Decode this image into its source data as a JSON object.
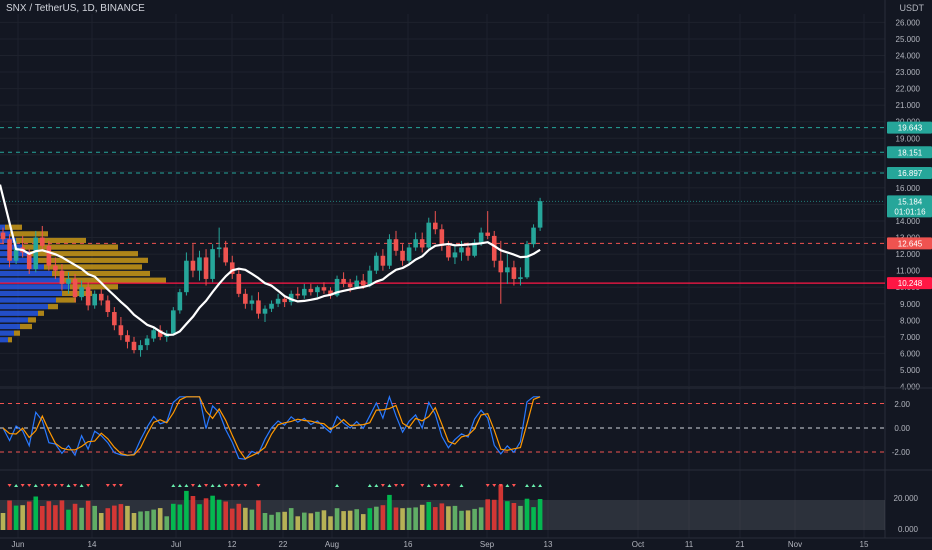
{
  "header": {
    "symbol_line": "SNX / TetherUS, 1D, BINANCE",
    "currency": "USDT"
  },
  "colors": {
    "bg": "#131722",
    "grid": "#1e222d",
    "up": "#26a69a",
    "down": "#ef5350",
    "ma": "#ffffff",
    "vp_blue": "#2962ff",
    "vp_gold": "#d4a017",
    "osc_blue": "#2979ff",
    "osc_orange": "#ff9800"
  },
  "x_axis": {
    "labels": [
      "Jun",
      "14",
      "Jul",
      "12",
      "22",
      "Aug",
      "16",
      "Sep",
      "13",
      "Oct",
      "11",
      "21",
      "Nov",
      "15"
    ]
  },
  "price_axis": {
    "ticks": [
      "26.000",
      "25.000",
      "24.000",
      "23.000",
      "22.000",
      "21.000",
      "20.000",
      "19.000",
      "18.000",
      "17.000",
      "16.000",
      "15.000",
      "14.000",
      "13.000",
      "12.000",
      "11.000",
      "10.000",
      "9.000",
      "8.000",
      "7.000",
      "6.000",
      "5.000",
      "4.000"
    ]
  },
  "osc_axis": {
    "ticks": [
      "2.00",
      "0.00",
      "-2.00"
    ]
  },
  "vol_axis": {
    "ticks": [
      "20.000",
      "0.000"
    ]
  },
  "price_labels": {
    "teal": [
      "19.643",
      "18.151",
      "16.897"
    ],
    "last": "15.184",
    "countdown": "01:01:16",
    "red_dash": "12.645",
    "red_solid": "10.248"
  },
  "chart_data": {
    "type": "candlestick",
    "x_start_date": "2021-06-01",
    "symbol": "SNX / TetherUS",
    "interval": "1D",
    "exchange": "BINANCE",
    "ylim": [
      4,
      26.5
    ],
    "levels": {
      "teal_dashed": [
        19.643,
        18.151,
        16.897
      ],
      "red_dashed": 12.645,
      "red_solid": 10.248,
      "last": 15.184
    },
    "candles": [
      [
        13.3,
        13.6,
        12.6,
        12.9
      ],
      [
        12.9,
        13.2,
        11.2,
        11.6
      ],
      [
        11.6,
        12.8,
        11.4,
        12.4
      ],
      [
        12.4,
        13.1,
        11.8,
        12.1
      ],
      [
        12.1,
        12.3,
        10.8,
        11.1
      ],
      [
        11.1,
        13.4,
        10.9,
        13.0
      ],
      [
        13.0,
        13.7,
        12.2,
        12.5
      ],
      [
        12.5,
        12.8,
        11.0,
        11.3
      ],
      [
        11.3,
        11.8,
        10.5,
        11.0
      ],
      [
        11.0,
        11.4,
        9.8,
        10.2
      ],
      [
        10.2,
        10.9,
        9.6,
        10.5
      ],
      [
        10.5,
        10.8,
        9.1,
        9.4
      ],
      [
        9.4,
        10.4,
        9.2,
        10.0
      ],
      [
        10.0,
        10.3,
        8.6,
        8.9
      ],
      [
        8.9,
        9.8,
        8.7,
        9.6
      ],
      [
        9.6,
        9.9,
        8.9,
        9.2
      ],
      [
        9.2,
        9.5,
        8.2,
        8.5
      ],
      [
        8.5,
        8.8,
        7.4,
        7.7
      ],
      [
        7.7,
        8.2,
        6.8,
        7.1
      ],
      [
        7.1,
        7.4,
        6.3,
        6.7
      ],
      [
        6.7,
        7.0,
        6.0,
        6.2
      ],
      [
        6.2,
        6.8,
        5.8,
        6.5
      ],
      [
        6.5,
        7.1,
        6.2,
        6.9
      ],
      [
        6.9,
        7.6,
        6.7,
        7.4
      ],
      [
        7.4,
        7.7,
        6.8,
        7.0
      ],
      [
        7.0,
        7.4,
        6.7,
        7.2
      ],
      [
        7.2,
        8.8,
        7.1,
        8.6
      ],
      [
        8.6,
        9.9,
        8.4,
        9.7
      ],
      [
        9.7,
        12.1,
        9.5,
        11.6
      ],
      [
        11.6,
        12.6,
        10.6,
        11.0
      ],
      [
        11.0,
        12.2,
        10.4,
        11.8
      ],
      [
        11.8,
        12.3,
        10.1,
        10.5
      ],
      [
        10.5,
        12.6,
        10.3,
        12.3
      ],
      [
        12.3,
        13.6,
        11.8,
        12.4
      ],
      [
        12.4,
        12.8,
        11.3,
        11.5
      ],
      [
        11.5,
        11.9,
        10.5,
        10.8
      ],
      [
        10.8,
        11.1,
        9.4,
        9.6
      ],
      [
        9.6,
        9.9,
        8.7,
        9.0
      ],
      [
        9.0,
        9.5,
        8.6,
        9.2
      ],
      [
        9.2,
        9.7,
        8.1,
        8.4
      ],
      [
        8.4,
        8.9,
        7.9,
        8.7
      ],
      [
        8.7,
        9.2,
        8.5,
        9.0
      ],
      [
        9.0,
        9.6,
        8.8,
        9.3
      ],
      [
        9.3,
        9.5,
        8.8,
        9.1
      ],
      [
        9.1,
        9.8,
        8.9,
        9.6
      ],
      [
        9.6,
        10.0,
        9.3,
        9.5
      ],
      [
        9.5,
        10.2,
        9.3,
        9.9
      ],
      [
        9.9,
        10.2,
        9.5,
        9.7
      ],
      [
        9.7,
        10.1,
        9.4,
        10.0
      ],
      [
        10.0,
        10.3,
        9.6,
        9.8
      ],
      [
        9.8,
        10.0,
        9.3,
        9.5
      ],
      [
        9.5,
        10.7,
        9.4,
        10.5
      ],
      [
        10.5,
        10.9,
        10.0,
        10.2
      ],
      [
        10.2,
        10.5,
        9.7,
        10.0
      ],
      [
        10.0,
        10.7,
        9.9,
        10.4
      ],
      [
        10.4,
        10.8,
        9.9,
        10.1
      ],
      [
        10.1,
        11.3,
        10.0,
        11.0
      ],
      [
        11.0,
        12.1,
        10.8,
        11.9
      ],
      [
        11.9,
        12.3,
        11.0,
        11.3
      ],
      [
        11.3,
        13.2,
        11.1,
        12.9
      ],
      [
        12.9,
        13.4,
        11.9,
        12.2
      ],
      [
        12.2,
        12.6,
        11.3,
        11.6
      ],
      [
        11.6,
        12.6,
        11.4,
        12.4
      ],
      [
        12.4,
        13.3,
        12.2,
        12.9
      ],
      [
        12.9,
        13.3,
        12.1,
        12.4
      ],
      [
        12.4,
        14.2,
        12.2,
        13.9
      ],
      [
        13.9,
        14.6,
        13.2,
        13.5
      ],
      [
        13.5,
        13.8,
        12.2,
        12.5
      ],
      [
        12.5,
        12.8,
        11.6,
        11.8
      ],
      [
        11.8,
        12.5,
        11.4,
        12.1
      ],
      [
        12.1,
        12.8,
        11.6,
        12.4
      ],
      [
        12.4,
        12.7,
        11.6,
        11.9
      ],
      [
        11.9,
        12.9,
        11.8,
        12.7
      ],
      [
        12.7,
        13.6,
        12.5,
        13.3
      ],
      [
        13.3,
        14.6,
        12.9,
        13.1
      ],
      [
        13.1,
        13.4,
        11.2,
        11.6
      ],
      [
        11.6,
        12.8,
        9.0,
        10.9
      ],
      [
        10.9,
        12.0,
        10.2,
        11.2
      ],
      [
        11.2,
        11.6,
        10.1,
        10.5
      ],
      [
        10.5,
        11.2,
        10.1,
        10.6
      ],
      [
        10.6,
        12.8,
        10.5,
        12.6
      ],
      [
        12.6,
        13.8,
        12.4,
        13.6
      ],
      [
        13.6,
        15.4,
        13.4,
        15.2
      ]
    ],
    "volume_profile": [
      {
        "price": 13.6,
        "blue": 5,
        "gold": 22
      },
      {
        "price": 13.2,
        "blue": 10,
        "gold": 48
      },
      {
        "price": 12.8,
        "blue": 16,
        "gold": 86
      },
      {
        "price": 12.4,
        "blue": 22,
        "gold": 118
      },
      {
        "price": 12.0,
        "blue": 30,
        "gold": 138
      },
      {
        "price": 11.6,
        "blue": 38,
        "gold": 148
      },
      {
        "price": 11.2,
        "blue": 44,
        "gold": 142
      },
      {
        "price": 10.8,
        "blue": 52,
        "gold": 150
      },
      {
        "price": 10.4,
        "blue": 60,
        "gold": 166
      },
      {
        "price": 10.0,
        "blue": 70,
        "gold": 118
      },
      {
        "price": 9.6,
        "blue": 62,
        "gold": 92
      },
      {
        "price": 9.2,
        "blue": 56,
        "gold": 76
      },
      {
        "price": 8.8,
        "blue": 48,
        "gold": 58
      },
      {
        "price": 8.4,
        "blue": 38,
        "gold": 44
      },
      {
        "price": 8.0,
        "blue": 28,
        "gold": 36
      },
      {
        "price": 7.6,
        "blue": 20,
        "gold": 32
      },
      {
        "price": 7.2,
        "blue": 14,
        "gold": 20
      },
      {
        "price": 6.8,
        "blue": 8,
        "gold": 12
      }
    ]
  }
}
